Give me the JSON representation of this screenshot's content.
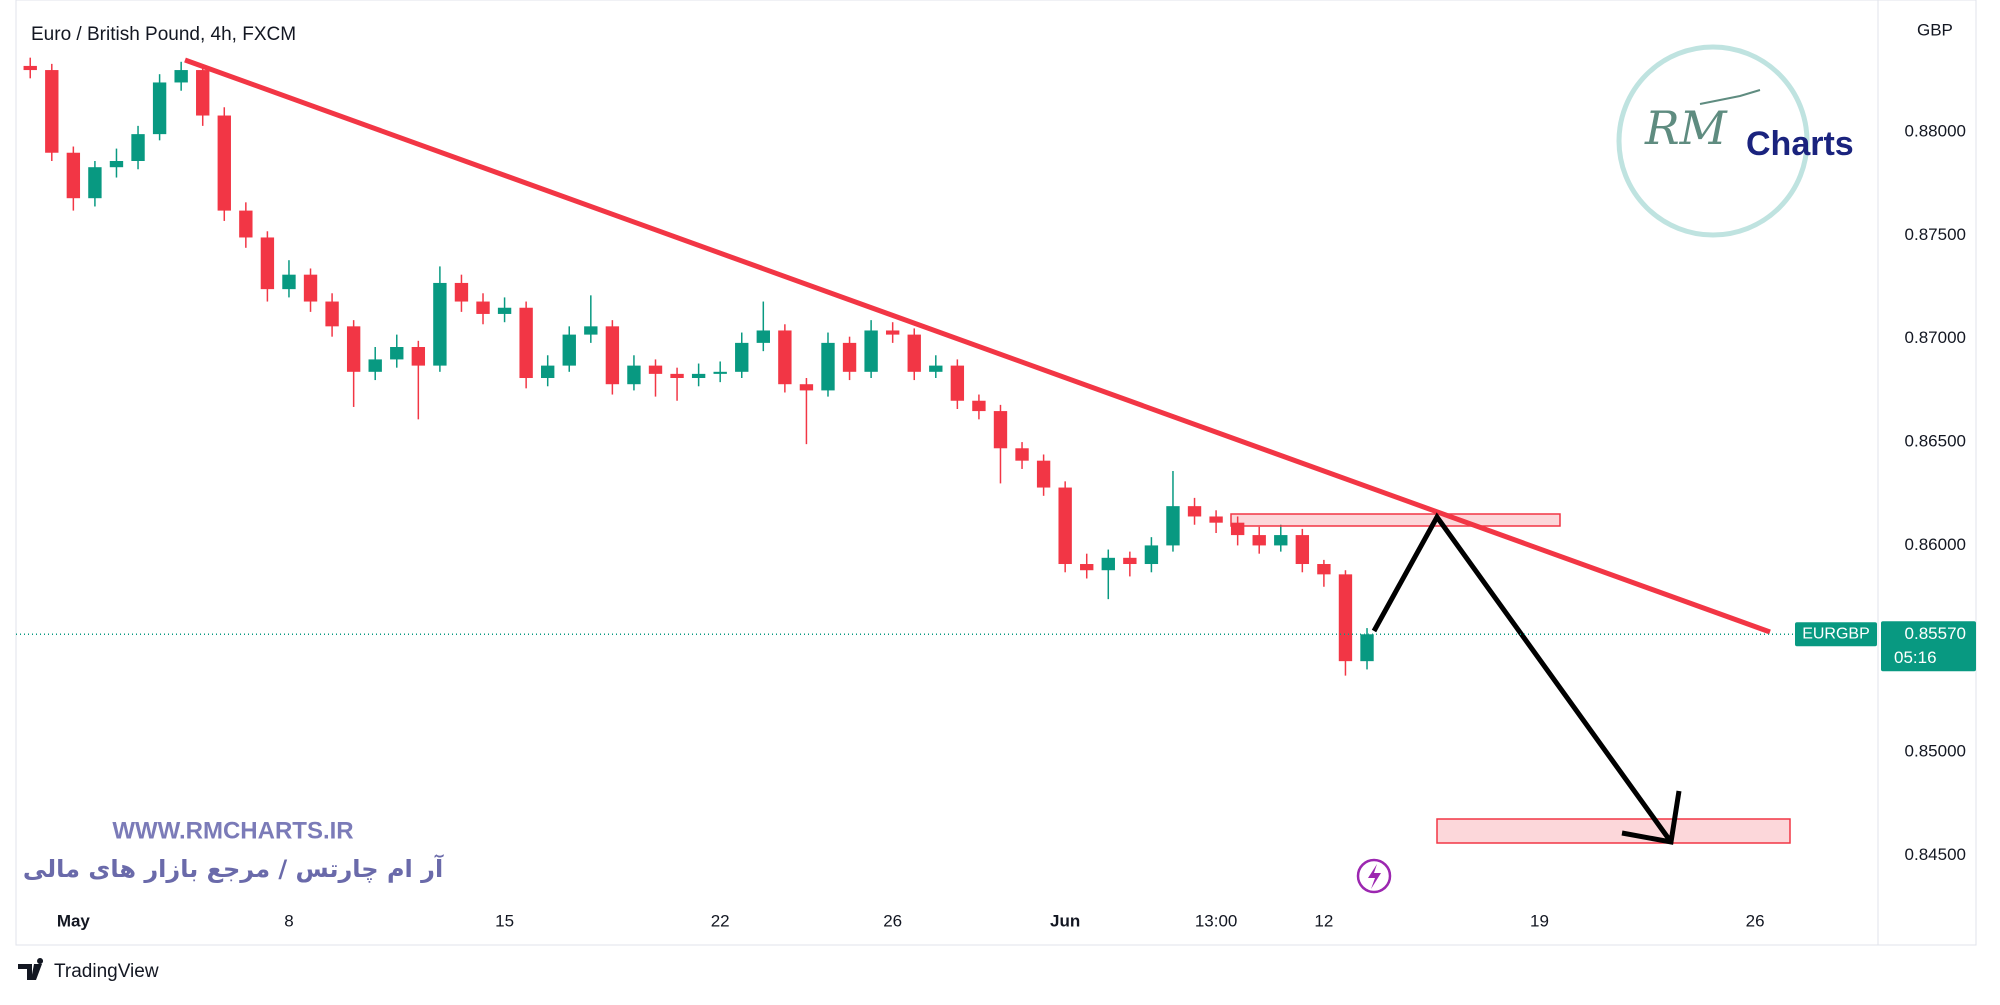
{
  "chart_data": {
    "type": "candlestick",
    "title": "Euro / British Pound, 4h, FXCM",
    "currency": "GBP",
    "x": [
      -1,
      -0.5,
      0,
      0.5,
      1,
      1.5,
      2,
      2.5,
      3,
      3.5,
      4,
      4.5,
      5,
      5.5,
      6,
      6.5,
      7,
      7.5,
      8,
      8.5,
      9,
      9.5,
      10,
      10.5,
      11,
      11.5,
      12,
      12.5,
      13,
      13.5,
      14,
      14.5,
      15,
      15.5,
      16,
      16.5,
      17,
      17.5,
      18,
      18.5,
      19,
      19.5,
      20,
      20.5,
      21,
      21.5,
      22,
      22.5,
      23,
      23.5,
      24,
      24.5,
      25,
      25.5,
      26,
      26.5,
      27,
      27.5,
      28,
      28.5,
      29,
      29.5,
      30
    ],
    "ohlc": [
      [
        0.8832,
        0.8836,
        0.8826,
        0.883
      ],
      [
        0.883,
        0.8833,
        0.8786,
        0.879
      ],
      [
        0.879,
        0.8793,
        0.8762,
        0.8768
      ],
      [
        0.8768,
        0.8786,
        0.8764,
        0.8783
      ],
      [
        0.8783,
        0.8792,
        0.8778,
        0.8786
      ],
      [
        0.8786,
        0.8803,
        0.8782,
        0.8799
      ],
      [
        0.8799,
        0.8828,
        0.8796,
        0.8824
      ],
      [
        0.8824,
        0.8834,
        0.882,
        0.883
      ],
      [
        0.883,
        0.8832,
        0.8803,
        0.8808
      ],
      [
        0.8808,
        0.8812,
        0.8757,
        0.8762
      ],
      [
        0.8762,
        0.8766,
        0.8744,
        0.8749
      ],
      [
        0.8749,
        0.8752,
        0.8718,
        0.8724
      ],
      [
        0.8724,
        0.8738,
        0.872,
        0.8731
      ],
      [
        0.8731,
        0.8734,
        0.8713,
        0.8718
      ],
      [
        0.8718,
        0.8722,
        0.8701,
        0.8706
      ],
      [
        0.8706,
        0.8709,
        0.8667,
        0.8684
      ],
      [
        0.8684,
        0.8696,
        0.868,
        0.869
      ],
      [
        0.869,
        0.8702,
        0.8686,
        0.8696
      ],
      [
        0.8696,
        0.8699,
        0.8661,
        0.8687
      ],
      [
        0.8687,
        0.8735,
        0.8684,
        0.8727
      ],
      [
        0.8727,
        0.8731,
        0.8713,
        0.8718
      ],
      [
        0.8718,
        0.8722,
        0.8707,
        0.8712
      ],
      [
        0.8712,
        0.872,
        0.8708,
        0.8715
      ],
      [
        0.8715,
        0.8718,
        0.8676,
        0.8681
      ],
      [
        0.8681,
        0.8692,
        0.8677,
        0.8687
      ],
      [
        0.8687,
        0.8706,
        0.8684,
        0.8702
      ],
      [
        0.8702,
        0.8721,
        0.8698,
        0.8706
      ],
      [
        0.8706,
        0.8709,
        0.8673,
        0.8678
      ],
      [
        0.8678,
        0.8692,
        0.8675,
        0.8687
      ],
      [
        0.8687,
        0.869,
        0.8672,
        0.8683
      ],
      [
        0.8683,
        0.8686,
        0.867,
        0.8681
      ],
      [
        0.8681,
        0.8688,
        0.8677,
        0.8683
      ],
      [
        0.8683,
        0.8689,
        0.8679,
        0.8684
      ],
      [
        0.8684,
        0.8703,
        0.8681,
        0.8698
      ],
      [
        0.8698,
        0.8718,
        0.8694,
        0.8704
      ],
      [
        0.8704,
        0.8707,
        0.8674,
        0.8678
      ],
      [
        0.8678,
        0.8681,
        0.8649,
        0.8675
      ],
      [
        0.8675,
        0.8703,
        0.8672,
        0.8698
      ],
      [
        0.8698,
        0.8701,
        0.868,
        0.8684
      ],
      [
        0.8684,
        0.8709,
        0.8681,
        0.8704
      ],
      [
        0.8704,
        0.8708,
        0.8698,
        0.8702
      ],
      [
        0.8702,
        0.8705,
        0.868,
        0.8684
      ],
      [
        0.8684,
        0.8692,
        0.8681,
        0.8687
      ],
      [
        0.8687,
        0.869,
        0.8666,
        0.867
      ],
      [
        0.867,
        0.8673,
        0.8661,
        0.8665
      ],
      [
        0.8665,
        0.8668,
        0.863,
        0.8647
      ],
      [
        0.8647,
        0.865,
        0.8637,
        0.8641
      ],
      [
        0.8641,
        0.8644,
        0.8624,
        0.8628
      ],
      [
        0.8628,
        0.8631,
        0.8587,
        0.8591
      ],
      [
        0.8591,
        0.8596,
        0.8584,
        0.8588
      ],
      [
        0.8588,
        0.8598,
        0.8574,
        0.8594
      ],
      [
        0.8594,
        0.8597,
        0.8585,
        0.8591
      ],
      [
        0.8591,
        0.8604,
        0.8587,
        0.86
      ],
      [
        0.86,
        0.8636,
        0.8597,
        0.8619
      ],
      [
        0.8619,
        0.8623,
        0.861,
        0.8614
      ],
      [
        0.8614,
        0.8617,
        0.8606,
        0.8611
      ],
      [
        0.8611,
        0.8614,
        0.86,
        0.8605
      ],
      [
        0.8605,
        0.8609,
        0.8596,
        0.86
      ],
      [
        0.86,
        0.861,
        0.8597,
        0.8605
      ],
      [
        0.8605,
        0.8608,
        0.8587,
        0.8591
      ],
      [
        0.8591,
        0.8593,
        0.858,
        0.8586
      ],
      [
        0.8586,
        0.8588,
        0.8537,
        0.8544
      ],
      [
        0.8544,
        0.856,
        0.854,
        0.8557
      ]
    ],
    "up_color": "#089981",
    "down_color": "#f23645",
    "xlim": [
      -1.33,
      41.78
    ],
    "xticks": [
      {
        "value": 0,
        "label": "May"
      },
      {
        "value": 5,
        "label": "8"
      },
      {
        "value": 10,
        "label": "15"
      },
      {
        "value": 15,
        "label": "22"
      },
      {
        "value": 19,
        "label": "26"
      },
      {
        "value": 23,
        "label": "Jun"
      },
      {
        "value": 26.5,
        "label": "13:00"
      },
      {
        "value": 29,
        "label": "12"
      },
      {
        "value": 34,
        "label": "19"
      },
      {
        "value": 39,
        "label": "26"
      }
    ],
    "ylim": [
      0.84265,
      0.88639
    ],
    "yticks": [
      {
        "value": 0.845,
        "label": "0.84500"
      },
      {
        "value": 0.85,
        "label": "0.85000"
      },
      {
        "value": 0.86,
        "label": "0.86000"
      },
      {
        "value": 0.865,
        "label": "0.86500"
      },
      {
        "value": 0.87,
        "label": "0.87000"
      },
      {
        "value": 0.875,
        "label": "0.87500"
      },
      {
        "value": 0.88,
        "label": "0.88000"
      }
    ],
    "grid": false,
    "symbol": "EURGBP",
    "last_price": {
      "value": 0.8557,
      "label": "0.85570"
    },
    "countdown": "05:16"
  },
  "watermark": {
    "url": "WWW.RMCHARTS.IR",
    "tagline": "آر ام چارتس / مرجع بازار های مالی"
  },
  "logo": {
    "mark": "RM",
    "text": "Charts"
  },
  "footer": "TradingView"
}
